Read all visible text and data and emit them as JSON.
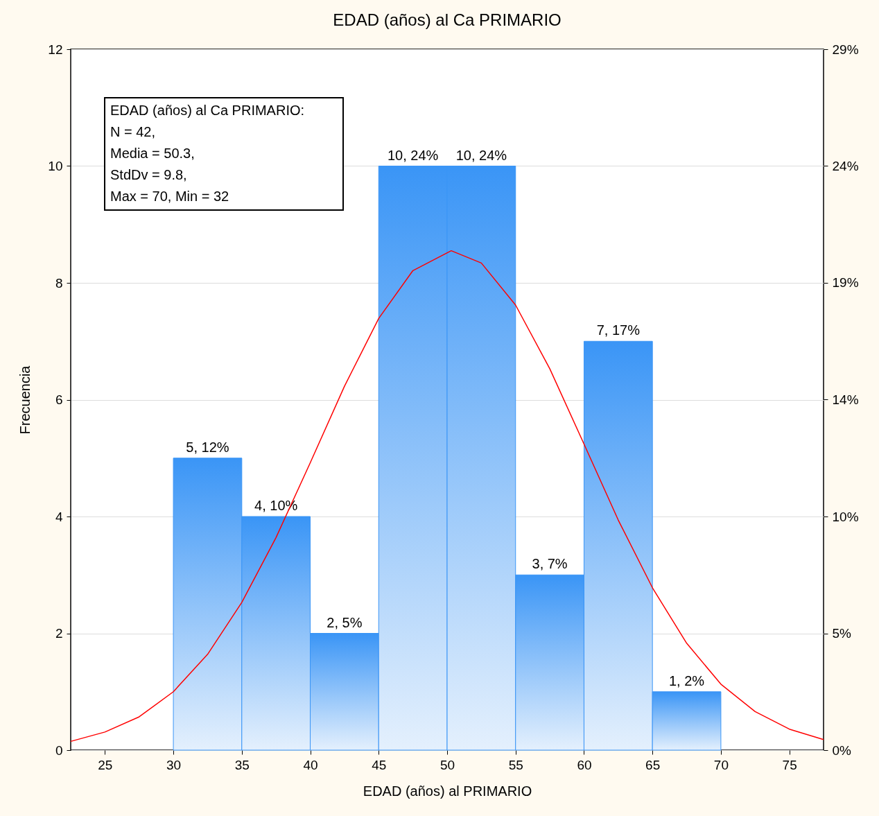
{
  "chart_data": {
    "type": "histogram",
    "title": "EDAD (años) al Ca PRIMARIO",
    "xlabel": "EDAD (años) al PRIMARIO",
    "ylabel": "Frecuencia",
    "bins": [
      30,
      35,
      40,
      45,
      50,
      55,
      60,
      65,
      70
    ],
    "values": [
      5,
      4,
      2,
      10,
      10,
      3,
      7,
      1
    ],
    "value_labels": [
      "5, 12%",
      "4, 10%",
      "2, 5%",
      "10, 24%",
      "10, 24%",
      "3, 7%",
      "7, 17%",
      "1, 2%"
    ],
    "color": "#3a95f6",
    "series": [
      {
        "type": "line",
        "color": "#ff0000",
        "x": [
          22.5,
          25,
          27.5,
          30,
          32.5,
          35,
          37.5,
          40,
          42.5,
          45,
          47.5,
          50.3,
          52.5,
          55,
          57.5,
          60,
          62.5,
          65,
          67.5,
          70,
          72.5,
          75,
          77.5
        ],
        "values": [
          0.15,
          0.31,
          0.57,
          1.0,
          1.64,
          2.53,
          3.64,
          4.92,
          6.23,
          7.39,
          8.21,
          8.55,
          8.34,
          7.62,
          6.53,
          5.24,
          3.94,
          2.78,
          1.83,
          1.13,
          0.66,
          0.36,
          0.18
        ]
      }
    ],
    "xlim": [
      22.5,
      77.5
    ],
    "xticks": [
      25,
      30,
      35,
      40,
      45,
      50,
      55,
      60,
      65,
      70,
      75
    ],
    "ylim": [
      0,
      12
    ],
    "yticks": [
      0,
      2,
      4,
      6,
      8,
      10,
      12
    ],
    "y2lim": [
      0,
      28.57
    ],
    "y2ticks": [
      {
        "value": 0,
        "label": "0%"
      },
      {
        "value": 4.76,
        "label": "5%"
      },
      {
        "value": 9.52,
        "label": "10%"
      },
      {
        "value": 14.29,
        "label": "14%"
      },
      {
        "value": 19.05,
        "label": "19%"
      },
      {
        "value": 23.81,
        "label": "24%"
      },
      {
        "value": 28.57,
        "label": "29%"
      }
    ],
    "grid": "y",
    "annotations": [
      "EDAD (años) al Ca PRIMARIO:",
      "N = 42,",
      "Media = 50.3,",
      "StdDv = 9.8,",
      "Max = 70, Min = 32"
    ]
  }
}
